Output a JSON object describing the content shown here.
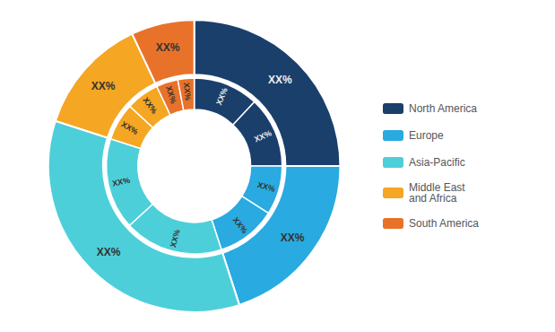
{
  "chart_data": {
    "type": "pie",
    "categories": [
      "North America",
      "Europe",
      "Asia-Pacific",
      "Middle East\nand Africa",
      "South America"
    ],
    "values": [
      25,
      20,
      35,
      13,
      7
    ],
    "value_labels": [
      "XX%",
      "XX%",
      "XX%",
      "XX%",
      "XX%"
    ],
    "inner_values": [
      [
        12,
        13
      ],
      [
        9,
        11
      ],
      [
        18.2,
        16.8
      ],
      [
        6.89,
        6.11
      ],
      [
        3.99,
        3.01
      ]
    ],
    "inner_value_labels": [
      [
        "XX%",
        "XX%"
      ],
      [
        "XX%",
        "XX%"
      ],
      [
        "XX%",
        "XX%"
      ],
      [
        "XX%",
        "XX%"
      ],
      [
        "XX%",
        "XX%"
      ]
    ],
    "colors": [
      "#1b3f6b",
      "#29aae1",
      "#4dcfda",
      "#f5a623",
      "#e8722a"
    ],
    "data_labels": true,
    "legend": "right"
  }
}
